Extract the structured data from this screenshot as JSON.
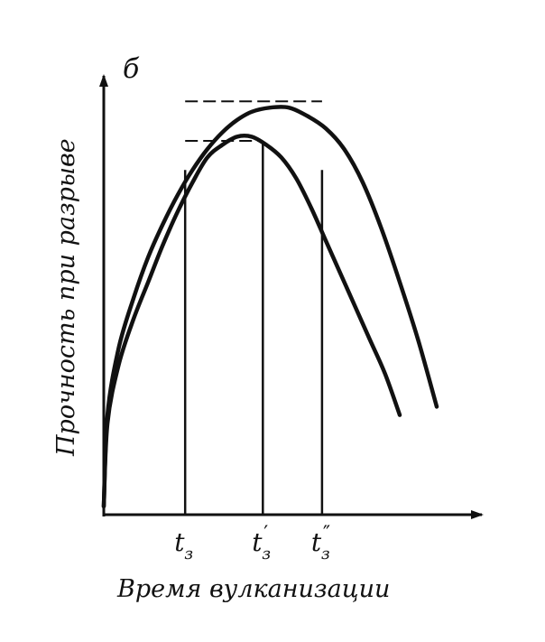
{
  "panel_label": "б",
  "chart_data": {
    "type": "line",
    "title": "",
    "xlabel": "Время вулканизации",
    "ylabel": "Прочность при разрыве",
    "grid": false,
    "legend": "none",
    "xlim": [
      0,
      10
    ],
    "ylim": [
      0,
      10
    ],
    "axis_color": "#111111",
    "line_color": "#111111",
    "series": [
      {
        "x": [
          0,
          0.1,
          0.4,
          0.8,
          1.2,
          1.6,
          2.0,
          2.4,
          2.8,
          3.2,
          3.6,
          4.0,
          4.5,
          5.0,
          5.5,
          6.0,
          6.5,
          7.0,
          7.5,
          8.0,
          8.5,
          9.0
        ],
        "y": [
          0.2,
          2.4,
          4.0,
          5.2,
          6.2,
          7.0,
          7.7,
          8.3,
          8.8,
          9.2,
          9.5,
          9.7,
          9.8,
          9.8,
          9.6,
          9.3,
          8.8,
          8.0,
          6.9,
          5.6,
          4.2,
          2.6
        ]
      },
      {
        "x": [
          0,
          0.1,
          0.4,
          0.8,
          1.2,
          1.6,
          2.0,
          2.4,
          2.8,
          3.2,
          3.6,
          4.0,
          4.4,
          4.8,
          5.2,
          5.6,
          6.0,
          6.4,
          6.8,
          7.2,
          7.6,
          8.0
        ],
        "y": [
          0.2,
          2.2,
          3.6,
          4.7,
          5.6,
          6.5,
          7.3,
          8.0,
          8.6,
          8.9,
          9.1,
          9.1,
          8.9,
          8.6,
          8.1,
          7.4,
          6.6,
          5.8,
          5.0,
          4.2,
          3.4,
          2.4
        ]
      }
    ],
    "markers": [
      {
        "label_main": "t",
        "label_sub": "з",
        "label_prime": "",
        "x": 2.2
      },
      {
        "label_main": "t",
        "label_sub": "з",
        "label_prime": "′",
        "x": 4.3
      },
      {
        "label_main": "t",
        "label_sub": "з",
        "label_prime": "″",
        "x": 5.9
      }
    ],
    "reference_lines": [
      {
        "type": "vertical",
        "x": 2.2,
        "y": 8.3
      },
      {
        "type": "vertical",
        "x": 4.3,
        "y": 9.0
      },
      {
        "type": "vertical",
        "x": 5.9,
        "y": 8.3
      },
      {
        "type": "horizontal-dashed",
        "x1": 2.2,
        "x2": 5.9,
        "y": 9.95
      },
      {
        "type": "horizontal-dashed",
        "x1": 2.2,
        "x2": 4.3,
        "y": 9.0
      }
    ]
  }
}
